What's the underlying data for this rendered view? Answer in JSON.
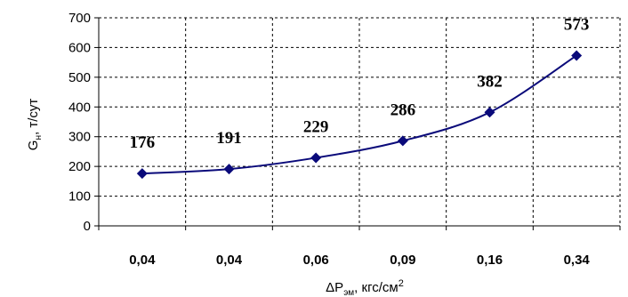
{
  "chart_data": {
    "type": "line",
    "categories": [
      "0,04",
      "0,04",
      "0,06",
      "0,09",
      "0,16",
      "0,34"
    ],
    "values": [
      176,
      191,
      229,
      286,
      382,
      573
    ],
    "data_labels": [
      "176",
      "191",
      "229",
      "286",
      "382",
      "573"
    ],
    "ylim": [
      0,
      700
    ],
    "yticks": [
      0,
      100,
      200,
      300,
      400,
      500,
      600,
      700
    ],
    "ytick_labels": [
      "0",
      "100",
      "200",
      "300",
      "400",
      "500",
      "600",
      "700"
    ],
    "ylabel": {
      "main": "G",
      "sub": "н",
      "rest": ", т/сут"
    },
    "xlabel": {
      "main": "ΔP",
      "sub": "эм",
      "rest": ", кгс/см",
      "sup": "2"
    },
    "grid": true,
    "legend": "none",
    "series_color": "#0a0a7a"
  }
}
